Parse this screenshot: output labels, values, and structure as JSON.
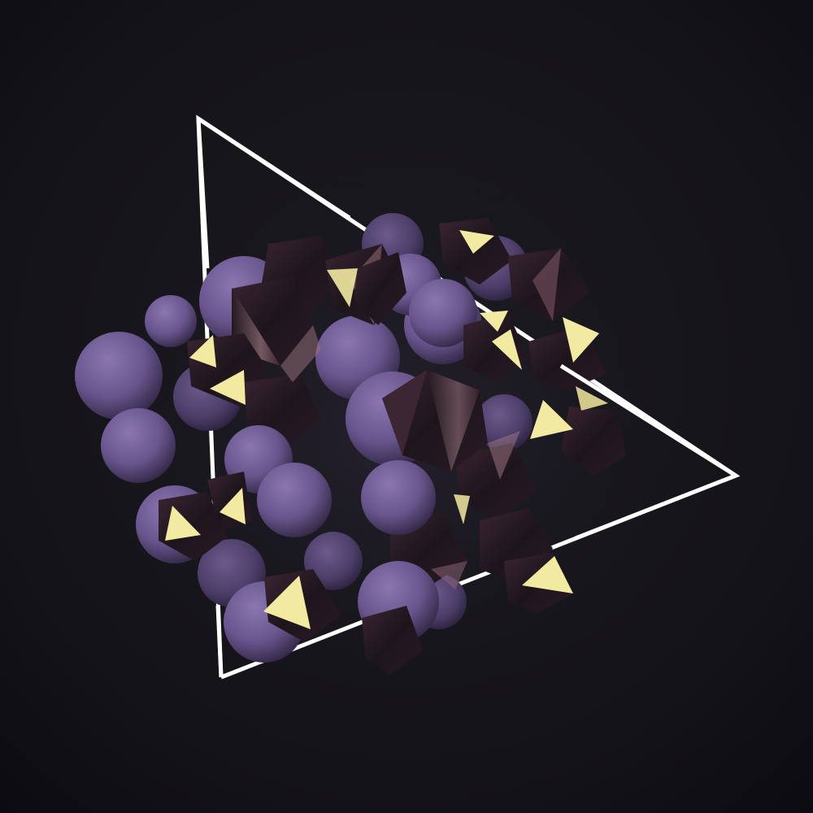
{
  "scene": {
    "background_color": "#141318",
    "vignette_color": "#0c0b0f",
    "outline_color": "#ffffff",
    "sphere_color": "#6e5a92",
    "sphere_highlight_color": "#8b76b0",
    "sphere_shadow_color": "#2c2340",
    "crystal_dark_color": "#1e151c",
    "crystal_mid_color": "#4a2f3a",
    "crystal_sheen_color": "#b98f9a",
    "crystal_bright_face_color": "#f2eaa0"
  }
}
